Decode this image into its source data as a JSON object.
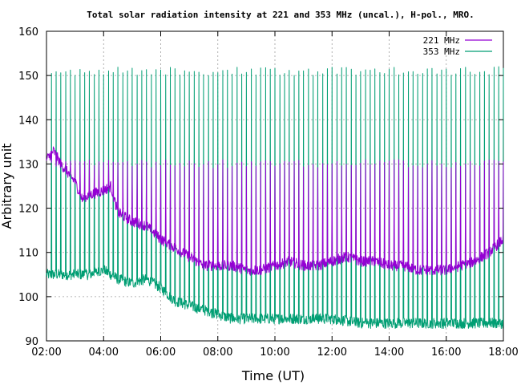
{
  "chart_data": {
    "type": "line",
    "title": "Total solar radiation intensity at 221 and 353 MHz (uncal.), H-pol., MRO.",
    "xlabel": "Time (UT)",
    "ylabel": "Arbitrary unit",
    "xlim": [
      "02:00",
      "18:00"
    ],
    "ylim": [
      90,
      160
    ],
    "x_ticks": [
      "02:00",
      "04:00",
      "06:00",
      "08:00",
      "10:00",
      "12:00",
      "14:00",
      "16:00",
      "18:00"
    ],
    "y_ticks": [
      "90",
      "100",
      "110",
      "120",
      "130",
      "140",
      "150",
      "160"
    ],
    "grid": true,
    "legend_position": "top-right",
    "series": [
      {
        "name": "221 MHz",
        "color": "#9400d3",
        "points": [
          [
            "02:00",
            131
          ],
          [
            "02:15",
            133
          ],
          [
            "02:30",
            130
          ],
          [
            "03:00",
            126
          ],
          [
            "03:15",
            122
          ],
          [
            "03:30",
            123
          ],
          [
            "04:00",
            124
          ],
          [
            "04:15",
            125
          ],
          [
            "04:30",
            119
          ],
          [
            "05:00",
            117
          ],
          [
            "05:30",
            116
          ],
          [
            "06:00",
            113
          ],
          [
            "06:30",
            111
          ],
          [
            "07:00",
            109
          ],
          [
            "07:30",
            107
          ],
          [
            "08:00",
            107
          ],
          [
            "08:30",
            107
          ],
          [
            "09:00",
            106
          ],
          [
            "09:30",
            106
          ],
          [
            "10:00",
            107
          ],
          [
            "10:30",
            108
          ],
          [
            "11:00",
            107
          ],
          [
            "11:30",
            107
          ],
          [
            "12:00",
            108
          ],
          [
            "12:30",
            109
          ],
          [
            "13:00",
            108
          ],
          [
            "13:30",
            108
          ],
          [
            "14:00",
            107
          ],
          [
            "14:30",
            107
          ],
          [
            "15:00",
            106
          ],
          [
            "15:30",
            106
          ],
          [
            "16:00",
            106
          ],
          [
            "16:30",
            107
          ],
          [
            "17:00",
            108
          ],
          [
            "17:30",
            110
          ],
          [
            "18:00",
            113
          ]
        ],
        "spikes": {
          "interval_minutes": 10,
          "level": 130
        }
      },
      {
        "name": "353 MHz",
        "color": "#009e73",
        "points": [
          [
            "02:00",
            105
          ],
          [
            "02:30",
            105
          ],
          [
            "03:00",
            105
          ],
          [
            "03:30",
            105
          ],
          [
            "04:00",
            106
          ],
          [
            "04:30",
            104
          ],
          [
            "05:00",
            103
          ],
          [
            "05:30",
            104
          ],
          [
            "06:00",
            102
          ],
          [
            "06:30",
            99
          ],
          [
            "07:00",
            98
          ],
          [
            "07:30",
            97
          ],
          [
            "08:00",
            96
          ],
          [
            "08:30",
            95
          ],
          [
            "09:00",
            95
          ],
          [
            "10:00",
            95
          ],
          [
            "11:00",
            95
          ],
          [
            "12:00",
            95
          ],
          [
            "13:00",
            94
          ],
          [
            "14:00",
            94
          ],
          [
            "15:00",
            94
          ],
          [
            "16:00",
            94
          ],
          [
            "17:00",
            94
          ],
          [
            "18:00",
            94
          ]
        ],
        "spikes": {
          "interval_minutes": 10,
          "level": 151
        }
      }
    ]
  }
}
